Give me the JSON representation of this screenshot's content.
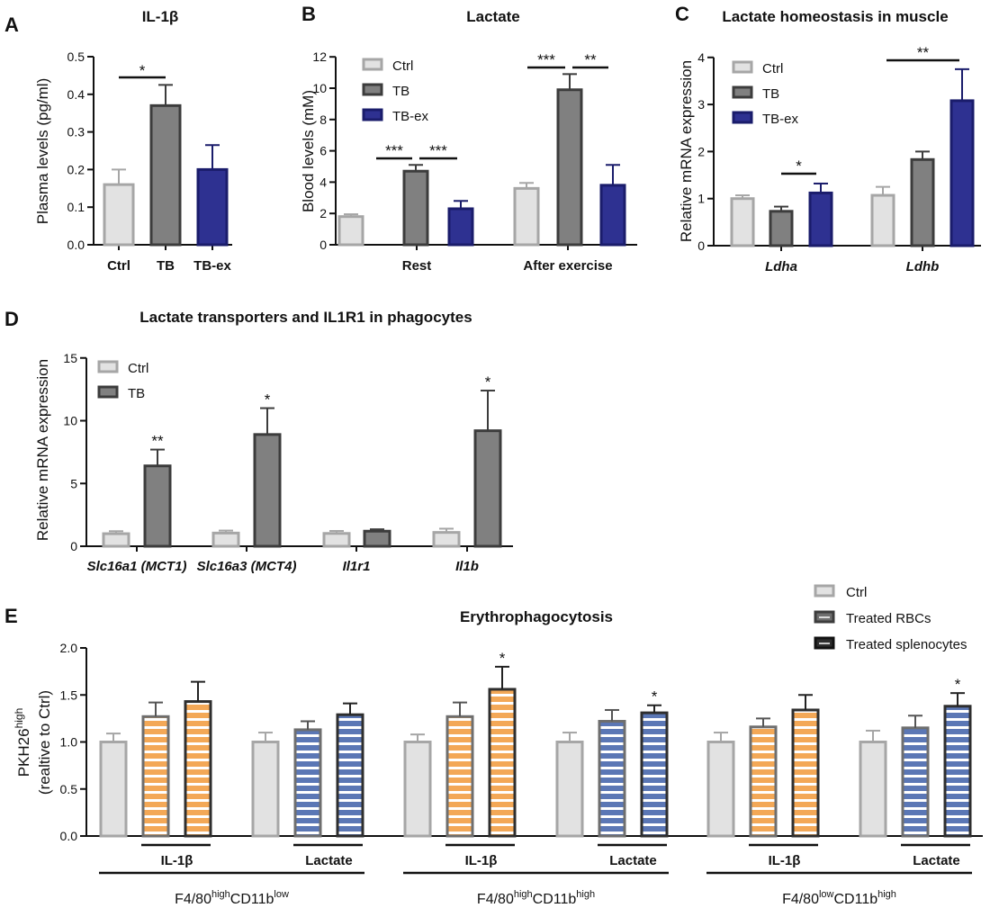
{
  "colors": {
    "ctrl_fill": "#e2e2e2",
    "ctrl_stroke": "#a6a6a6",
    "tb_fill": "#808080",
    "tb_stroke": "#3c3c3c",
    "tbex_fill": "#2e3191",
    "tbex_stroke": "#1a1c6b",
    "orange": "#f3a857",
    "blue": "#5b77b5",
    "rbc_fill": "#6e6e6e",
    "spl_fill": "#2e2e2e"
  },
  "chart_data": [
    {
      "id": "A",
      "letter": "A",
      "type": "bar",
      "title": "IL-1β",
      "ylabel": "Plasma levels (pg/ml)",
      "ylim": [
        0,
        0.5
      ],
      "yticks": [
        "0.0",
        "0.1",
        "0.2",
        "0.3",
        "0.4",
        "0.5"
      ],
      "categories": [
        "Ctrl",
        "TB",
        "TB-ex"
      ],
      "values": [
        0.16,
        0.37,
        0.2
      ],
      "errors": [
        0.04,
        0.055,
        0.065
      ],
      "annotations": [
        {
          "text": "*",
          "from": "Ctrl",
          "to": "TB"
        }
      ]
    },
    {
      "id": "B",
      "letter": "B",
      "type": "bar",
      "title": "Lactate",
      "ylabel": "Blood levels (mM)",
      "ylim": [
        0,
        12
      ],
      "yticks": [
        "0",
        "2",
        "4",
        "6",
        "8",
        "10",
        "12"
      ],
      "categories": [
        "Rest",
        "After exercise"
      ],
      "legend": [
        "Ctrl",
        "TB",
        "TB-ex"
      ],
      "series": [
        {
          "name": "Ctrl",
          "values": [
            1.8,
            3.6
          ],
          "errors": [
            0.15,
            0.35
          ]
        },
        {
          "name": "TB",
          "values": [
            4.7,
            9.9
          ],
          "errors": [
            0.4,
            1.0
          ]
        },
        {
          "name": "TB-ex",
          "values": [
            2.3,
            3.8
          ],
          "errors": [
            0.5,
            1.3
          ]
        }
      ],
      "annotations": [
        {
          "text": "***",
          "category": "Rest",
          "from": "Ctrl",
          "to": "TB"
        },
        {
          "text": "***",
          "category": "Rest",
          "from": "TB",
          "to": "TB-ex"
        },
        {
          "text": "***",
          "category": "After exercise",
          "from": "Ctrl",
          "to": "TB"
        },
        {
          "text": "**",
          "category": "After exercise",
          "from": "TB",
          "to": "TB-ex"
        }
      ]
    },
    {
      "id": "C",
      "letter": "C",
      "type": "bar",
      "title": "Lactate homeostasis in muscle",
      "ylabel": "Relative mRNA expression",
      "ylim": [
        0,
        4
      ],
      "yticks": [
        "0",
        "1",
        "2",
        "3",
        "4"
      ],
      "categories": [
        "Ldha",
        "Ldhb"
      ],
      "legend": [
        "Ctrl",
        "TB",
        "TB-ex"
      ],
      "series": [
        {
          "name": "Ctrl",
          "values": [
            1.0,
            1.07
          ],
          "errors": [
            0.07,
            0.18
          ]
        },
        {
          "name": "TB",
          "values": [
            0.73,
            1.83
          ],
          "errors": [
            0.1,
            0.17
          ]
        },
        {
          "name": "TB-ex",
          "values": [
            1.12,
            3.08
          ],
          "errors": [
            0.2,
            0.67
          ]
        }
      ],
      "annotations": [
        {
          "text": "*",
          "category": "Ldha",
          "from": "TB",
          "to": "TB-ex"
        },
        {
          "text": "**",
          "category": "Ldhb",
          "from": "Ctrl",
          "to": "TB-ex"
        }
      ]
    },
    {
      "id": "D",
      "letter": "D",
      "type": "bar",
      "title": "Lactate transporters and IL1R1 in phagocytes",
      "ylabel": "Relative mRNA expression",
      "ylim": [
        0,
        15
      ],
      "yticks": [
        "0",
        "5",
        "10",
        "15"
      ],
      "categories": [
        "Slc16a1 (MCT1)",
        "Slc16a3 (MCT4)",
        "Il1r1",
        "Il1b"
      ],
      "legend": [
        "Ctrl",
        "TB"
      ],
      "series": [
        {
          "name": "Ctrl",
          "values": [
            1.0,
            1.05,
            1.02,
            1.1
          ],
          "errors": [
            0.2,
            0.2,
            0.2,
            0.3
          ]
        },
        {
          "name": "TB",
          "values": [
            6.4,
            8.9,
            1.2,
            9.2
          ],
          "errors": [
            1.3,
            2.1,
            0.15,
            3.2
          ]
        }
      ],
      "annotations": [
        {
          "text": "**",
          "category": "Slc16a1 (MCT1)"
        },
        {
          "text": "*",
          "category": "Slc16a3 (MCT4)"
        },
        {
          "text": "*",
          "category": "Il1b"
        }
      ]
    },
    {
      "id": "E",
      "letter": "E",
      "type": "bar",
      "title": "Erythrophagocytosis",
      "ylabel": "PKH26",
      "ylabel_sup": "high",
      "ylabel2": "(realtive to Ctrl)",
      "ylim": [
        0,
        2.0
      ],
      "yticks": [
        "0.0",
        "0.5",
        "1.0",
        "1.5",
        "2.0"
      ],
      "legend": [
        "Ctrl",
        "Treated RBCs",
        "Treated splenocytes"
      ],
      "groups": [
        {
          "label_parts": [
            {
              "t": "F4/80"
            },
            {
              "t": "high",
              "sup": true
            },
            {
              "t": "CD11b"
            },
            {
              "t": "low",
              "sup": true
            }
          ],
          "treatments": [
            {
              "label": "IL-1β",
              "values": [
                1.0,
                1.27,
                1.43
              ],
              "errors": [
                0.09,
                0.15,
                0.21
              ],
              "stars": [
                "",
                "",
                ""
              ]
            },
            {
              "label": "Lactate",
              "values": [
                1.0,
                1.13,
                1.29
              ],
              "errors": [
                0.1,
                0.09,
                0.12
              ],
              "stars": [
                "",
                "",
                ""
              ]
            }
          ]
        },
        {
          "label_parts": [
            {
              "t": "F4/80"
            },
            {
              "t": "high",
              "sup": true
            },
            {
              "t": "CD11b"
            },
            {
              "t": "high",
              "sup": true
            }
          ],
          "treatments": [
            {
              "label": "IL-1β",
              "values": [
                1.0,
                1.27,
                1.56
              ],
              "errors": [
                0.08,
                0.15,
                0.24
              ],
              "stars": [
                "",
                "",
                "*"
              ]
            },
            {
              "label": "Lactate",
              "values": [
                1.0,
                1.22,
                1.31
              ],
              "errors": [
                0.1,
                0.12,
                0.08
              ],
              "stars": [
                "",
                "",
                "*"
              ]
            }
          ]
        },
        {
          "label_parts": [
            {
              "t": "F4/80"
            },
            {
              "t": "low",
              "sup": true
            },
            {
              "t": "CD11b"
            },
            {
              "t": "high",
              "sup": true
            }
          ],
          "treatments": [
            {
              "label": "IL-1β",
              "values": [
                1.0,
                1.16,
                1.34
              ],
              "errors": [
                0.1,
                0.09,
                0.16
              ],
              "stars": [
                "",
                "",
                ""
              ]
            },
            {
              "label": "Lactate",
              "values": [
                1.0,
                1.15,
                1.38
              ],
              "errors": [
                0.12,
                0.13,
                0.14
              ],
              "stars": [
                "",
                "",
                "*"
              ]
            }
          ]
        }
      ]
    }
  ]
}
